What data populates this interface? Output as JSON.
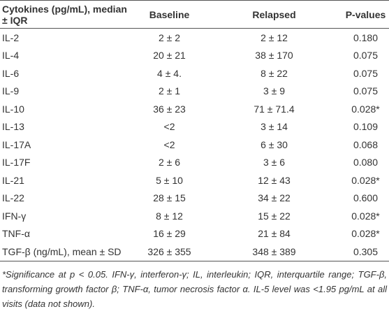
{
  "table": {
    "headers": [
      "Cytokines (pg/mL), median ± IQR",
      "Baseline",
      "Relapsed",
      "P-values"
    ],
    "rows": [
      [
        "IL-2",
        "2 ± 2",
        "2 ± 12",
        "0.180"
      ],
      [
        "IL-4",
        "20 ± 21",
        "38 ± 170",
        "0.075"
      ],
      [
        "IL-6",
        "4 ± 4.",
        "8 ± 22",
        "0.075"
      ],
      [
        "IL-9",
        "2 ± 1",
        "3 ± 9",
        "0.075"
      ],
      [
        "IL-10",
        "36 ± 23",
        "71 ± 71.4",
        "0.028*"
      ],
      [
        "IL-13",
        "<2",
        "3 ± 14",
        "0.109"
      ],
      [
        "IL-17A",
        "<2",
        "6 ± 30",
        "0.068"
      ],
      [
        "IL-17F",
        "2 ± 6",
        "3 ± 6",
        "0.080"
      ],
      [
        "IL-21",
        "5 ± 10",
        "12 ± 43",
        "0.028*"
      ],
      [
        "IL-22",
        "28 ± 15",
        "34 ± 22",
        "0.600"
      ],
      [
        "IFN-γ",
        "8 ± 12",
        "15 ± 22",
        "0.028*"
      ],
      [
        "TNF-α",
        "16 ± 29",
        "21 ± 84",
        "0.028*"
      ],
      [
        "TGF-β (ng/mL), mean ± SD",
        "326 ± 355",
        "348 ± 389",
        "0.305"
      ]
    ]
  },
  "footnote": "*Significance at p < 0.05. IFN-γ, interferon-γ; IL, interleukin; IQR, interquartile range; TGF-β, transforming growth factor β; TNF-α, tumor necrosis factor α. IL-5 level was <1.95 pg/mL at all visits (data not shown)."
}
